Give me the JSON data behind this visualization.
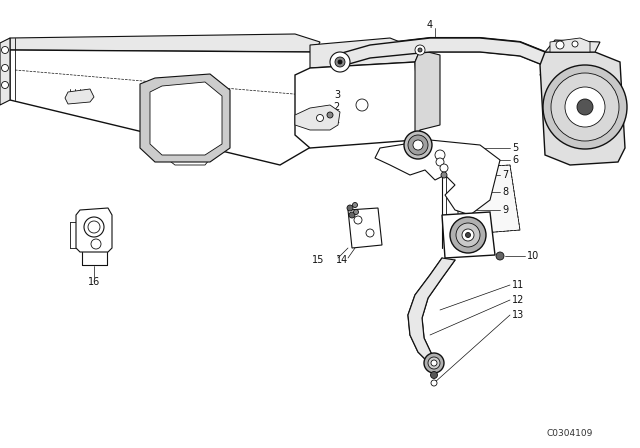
{
  "bg_color": "#ffffff",
  "line_color": "#111111",
  "catalog_number": "C0304109",
  "fig_width": 6.4,
  "fig_height": 4.48,
  "dpi": 100,
  "lw_main": 1.0,
  "lw_thin": 0.6,
  "lw_med": 0.8,
  "label_fontsize": 7.0,
  "gray_fill": "#e8e8e8",
  "white_fill": "#ffffff",
  "dark_fill": "#aaaaaa"
}
